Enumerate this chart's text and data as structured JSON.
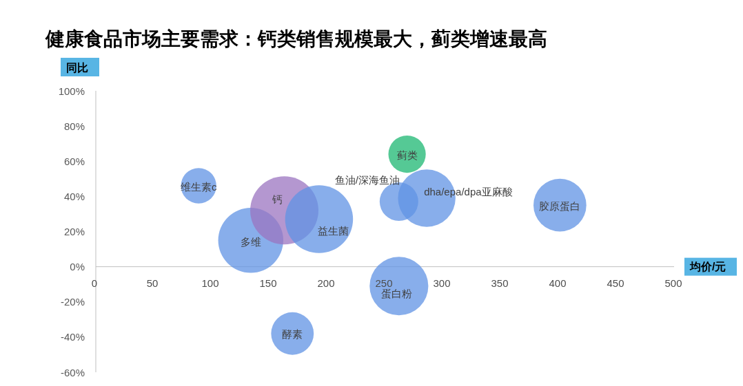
{
  "chart_data": {
    "type": "bubble",
    "title": "健康食品市场主要需求：钙类销售规模最大，蓟类增速最高",
    "xlabel": "均价/元",
    "ylabel": "同比",
    "xlim": [
      0,
      500
    ],
    "ylim": [
      -60,
      100
    ],
    "xticks": [
      0,
      50,
      100,
      150,
      200,
      250,
      300,
      350,
      400,
      450,
      500
    ],
    "yticks": [
      {
        "value": -60,
        "label": "-60%"
      },
      {
        "value": -40,
        "label": "-40%"
      },
      {
        "value": -20,
        "label": "-20%"
      },
      {
        "value": 0,
        "label": "0%"
      },
      {
        "value": 20,
        "label": "20%"
      },
      {
        "value": 40,
        "label": "40%"
      },
      {
        "value": 60,
        "label": "60%"
      },
      {
        "value": 80,
        "label": "80%"
      },
      {
        "value": 100,
        "label": "100%"
      }
    ],
    "legend": false,
    "series": [
      {
        "name": "维生素c",
        "color": "#88aeeb",
        "x": [
          90
        ],
        "values": [
          46
        ],
        "sizes": [
          0.27
        ]
      },
      {
        "name": "多维",
        "color": "#88aeeb",
        "x": [
          135
        ],
        "values": [
          15
        ],
        "sizes": [
          0.91
        ]
      },
      {
        "name": "钙",
        "color": "#b497d0",
        "x": [
          164
        ],
        "values": [
          32
        ],
        "sizes": [
          1
        ]
      },
      {
        "name": "酵素",
        "color": "#88aeeb",
        "x": [
          171
        ],
        "values": [
          -38
        ],
        "sizes": [
          0.39
        ]
      },
      {
        "name": "益生菌",
        "color": "#88aeeb",
        "x": [
          194
        ],
        "values": [
          27
        ],
        "sizes": [
          0.99
        ]
      },
      {
        "name": "鱼油/深海鱼油",
        "color": "#88aeeb",
        "x": [
          263
        ],
        "values": [
          37
        ],
        "sizes": [
          0.32
        ]
      },
      {
        "name": "蛋白粉",
        "color": "#88aeeb",
        "x": [
          263
        ],
        "values": [
          -11
        ],
        "sizes": [
          0.74
        ]
      },
      {
        "name": "蓟类",
        "color": "#55c995",
        "x": [
          270
        ],
        "values": [
          64
        ],
        "sizes": [
          0.3
        ]
      },
      {
        "name": "dha/epa/dpa亚麻酸",
        "color": "#88aeeb",
        "x": [
          287
        ],
        "values": [
          39
        ],
        "sizes": [
          0.71
        ]
      },
      {
        "name": "胶原蛋白",
        "color": "#88aeeb",
        "x": [
          402
        ],
        "values": [
          35
        ],
        "sizes": [
          0.6
        ]
      }
    ]
  }
}
